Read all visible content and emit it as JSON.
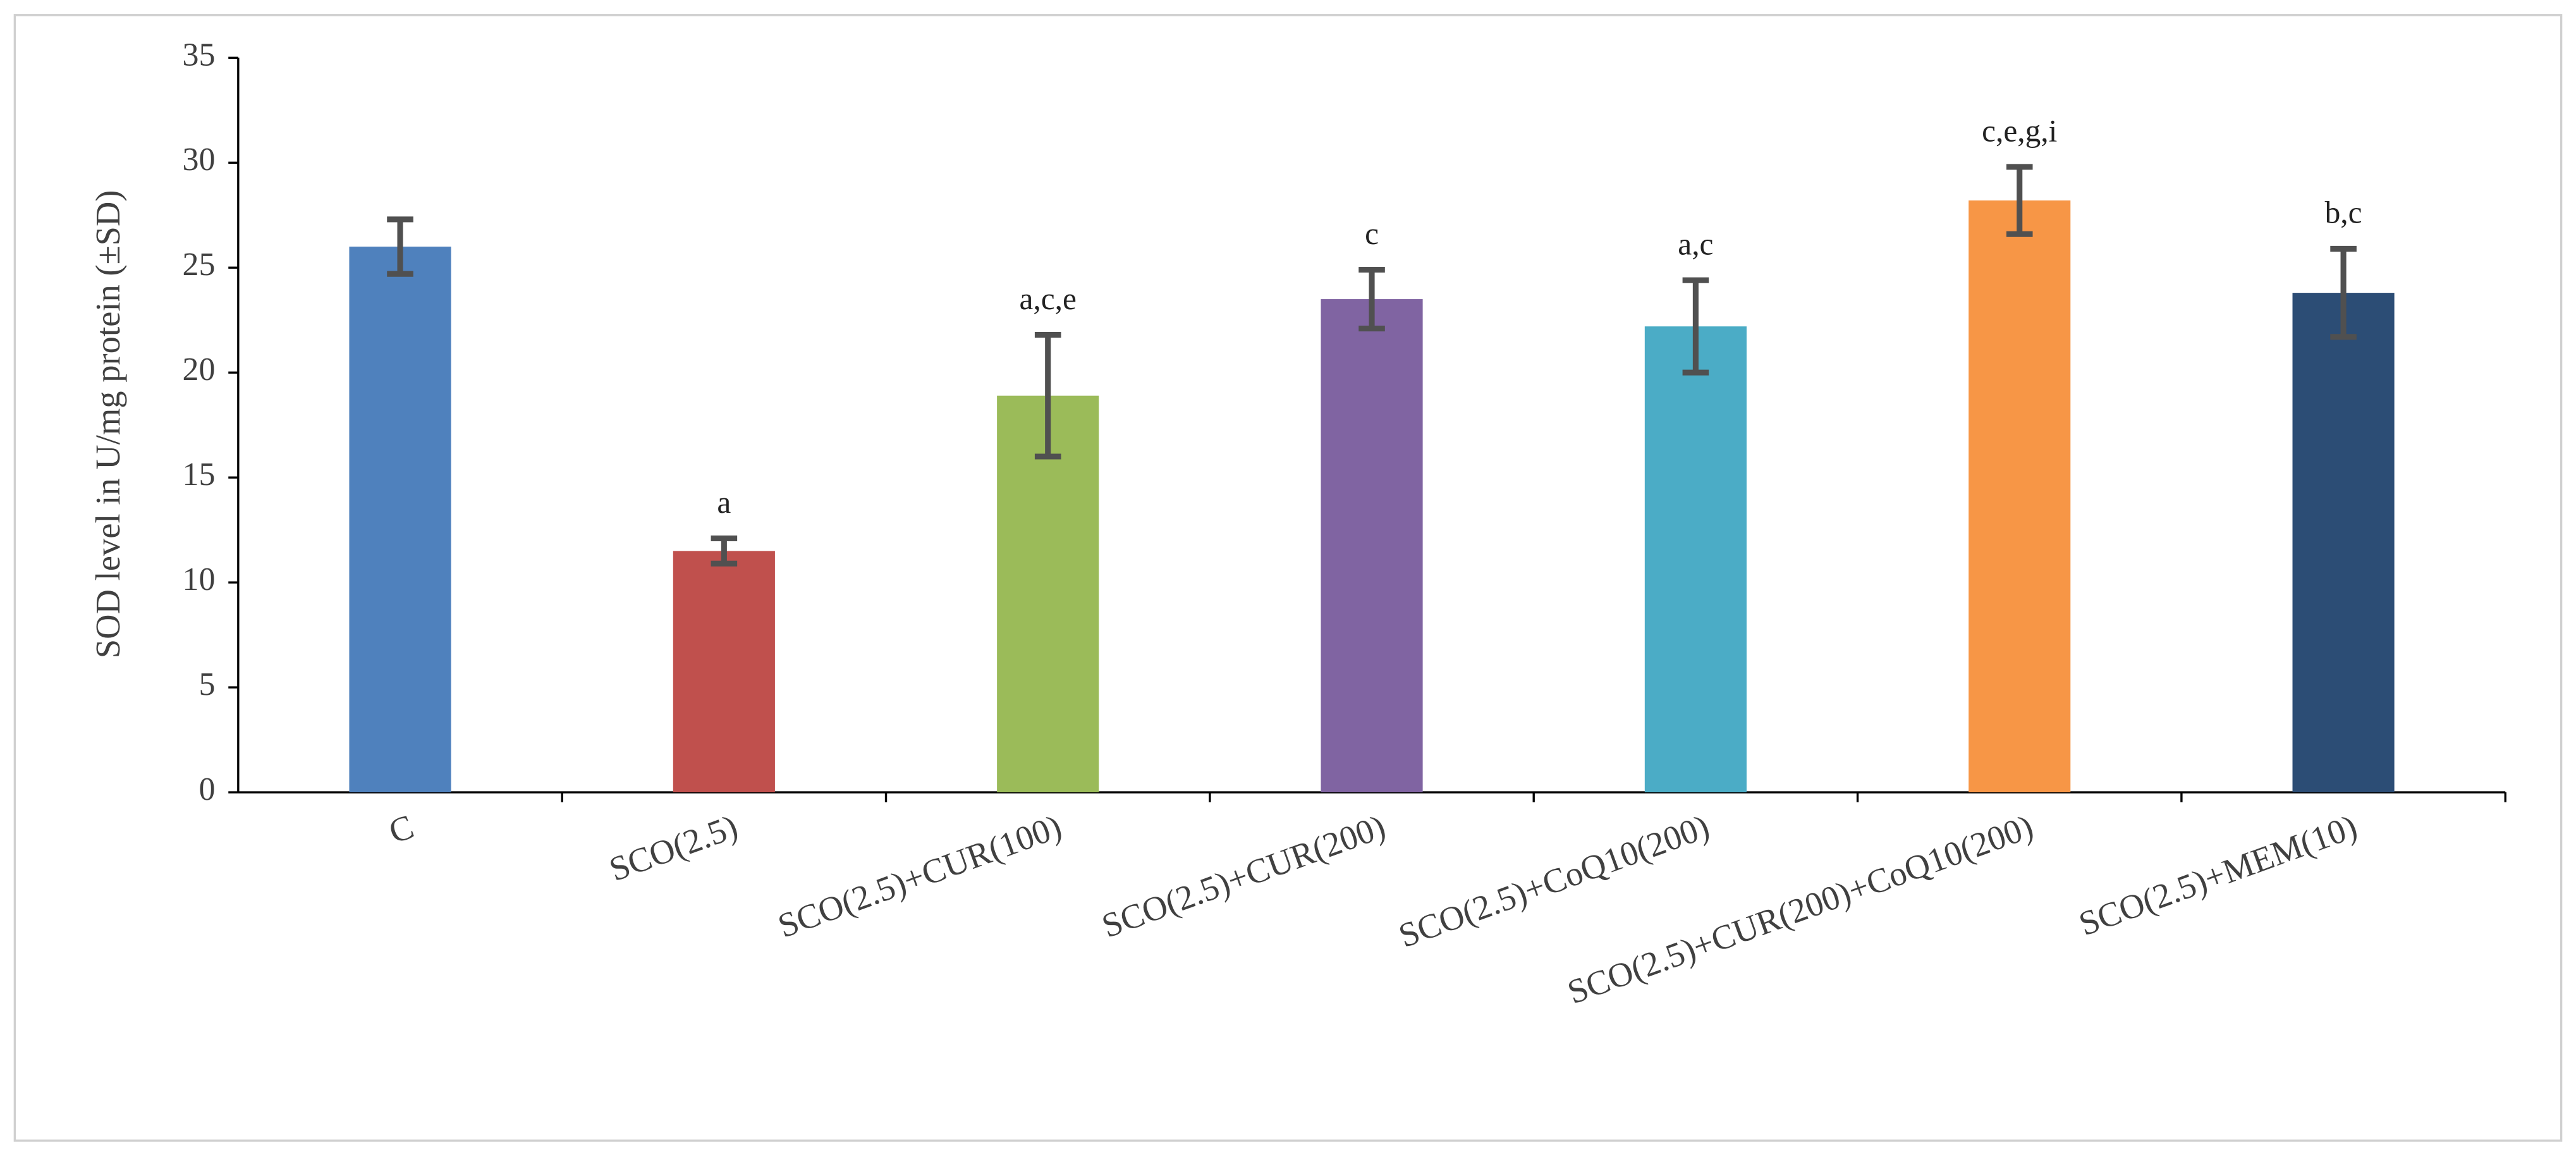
{
  "chart_data": {
    "type": "bar",
    "y_label": "SOD level in U/mg protein (±SD)",
    "categories": [
      "C",
      "SCO(2.5)",
      "SCO(2.5)+CUR(100)",
      "SCO(2.5)+CUR(200)",
      "SCO(2.5)+CoQ10(200)",
      "SCO(2.5)+CUR(200)+CoQ10(200)",
      "SCO(2.5)+MEM(10)"
    ],
    "values": [
      26.0,
      11.5,
      18.9,
      23.5,
      22.2,
      28.2,
      23.8
    ],
    "errors": [
      1.3,
      0.6,
      2.9,
      1.4,
      2.2,
      1.6,
      2.1
    ],
    "significance": [
      null,
      "a",
      "a,c,e",
      "c",
      "a,c",
      "c,e,g,i",
      "b,c"
    ],
    "colors": [
      "#4f81bd",
      "#c0504d",
      "#9bbb59",
      "#8064a2",
      "#4bacc6",
      "#f79646",
      "#2c4d75"
    ],
    "error_color": "#505050",
    "ylim": [
      0,
      35
    ],
    "yticks": [
      0,
      5,
      10,
      15,
      20,
      25,
      30,
      35
    ],
    "grid": false
  }
}
